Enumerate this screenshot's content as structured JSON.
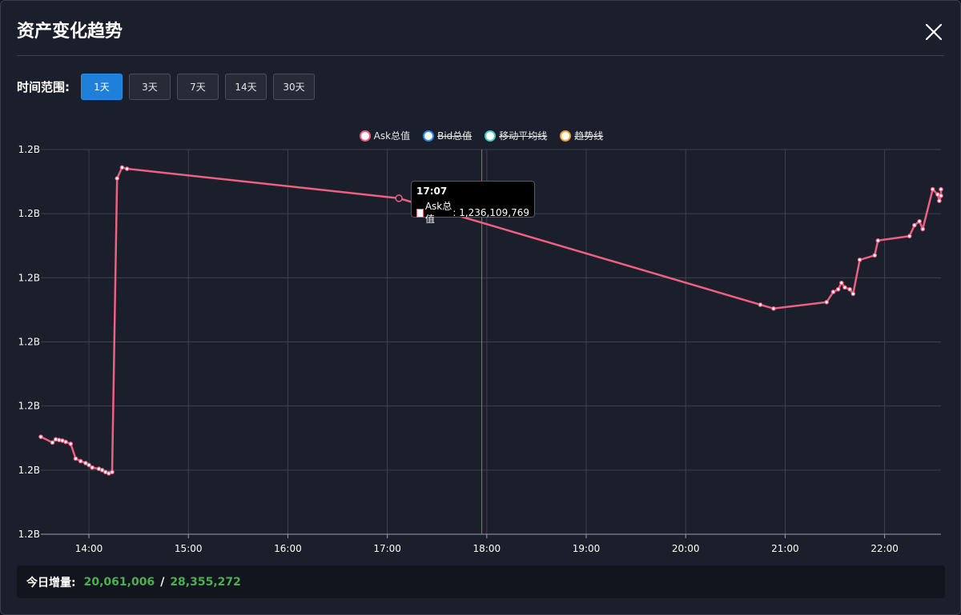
{
  "header": {
    "title": "资产变化趋势"
  },
  "range": {
    "label": "时间范围:",
    "options": [
      "1天",
      "3天",
      "7天",
      "14天",
      "30天"
    ],
    "selected": "1天"
  },
  "legend": [
    {
      "name": "Ask总值",
      "color": "#ee6080",
      "active": true
    },
    {
      "name": "Bid总值",
      "color": "#2a8ce6",
      "active": false
    },
    {
      "name": "移动平均线",
      "color": "#4ec9d0",
      "active": false
    },
    {
      "name": "趋势线",
      "color": "#f0a030",
      "active": false
    }
  ],
  "tooltip": {
    "time": "17:07",
    "series": "Ask总值",
    "value": "1,236,109,769"
  },
  "footer": {
    "label": "今日增量:",
    "value1": "20,061,006",
    "separator": "/",
    "value2": "28,355,272"
  },
  "chart_data": {
    "type": "line",
    "x_ticks": [
      "14:00",
      "15:00",
      "16:00",
      "17:00",
      "18:00",
      "19:00",
      "20:00",
      "21:00",
      "22:00"
    ],
    "y_ticks": [
      "1.2B",
      "1.2B",
      "1.2B",
      "1.2B",
      "1.2B",
      "1.2B",
      "1.2B"
    ],
    "x_domain": [
      "13:31",
      "22:34"
    ],
    "y_domain": [
      0,
      6
    ],
    "grid": true,
    "legend_position": "top-center",
    "crosshair_x": "17:57",
    "highlight_x": "17:07",
    "series": [
      {
        "name": "Ask总值",
        "color": "#ee6080",
        "points": [
          [
            "13:31",
            1.52
          ],
          [
            "13:38",
            1.43
          ],
          [
            "13:40",
            1.48
          ],
          [
            "13:42",
            1.47
          ],
          [
            "13:44",
            1.46
          ],
          [
            "13:46",
            1.44
          ],
          [
            "13:49",
            1.41
          ],
          [
            "13:52",
            1.18
          ],
          [
            "13:55",
            1.14
          ],
          [
            "13:58",
            1.11
          ],
          [
            "14:00",
            1.08
          ],
          [
            "14:02",
            1.04
          ],
          [
            "14:06",
            1.02
          ],
          [
            "14:08",
            1.0
          ],
          [
            "14:10",
            0.97
          ],
          [
            "14:12",
            0.95
          ],
          [
            "14:14",
            0.97
          ],
          [
            "14:17",
            5.55
          ],
          [
            "14:20",
            5.72
          ],
          [
            "14:23",
            5.7
          ],
          [
            "17:07",
            5.24
          ],
          [
            "20:45",
            3.58
          ],
          [
            "20:53",
            3.52
          ],
          [
            "21:25",
            3.62
          ],
          [
            "21:29",
            3.78
          ],
          [
            "21:32",
            3.82
          ],
          [
            "21:34",
            3.92
          ],
          [
            "21:36",
            3.85
          ],
          [
            "21:39",
            3.82
          ],
          [
            "21:41",
            3.75
          ],
          [
            "21:45",
            4.28
          ],
          [
            "21:54",
            4.35
          ],
          [
            "21:56",
            4.58
          ],
          [
            "22:15",
            4.65
          ],
          [
            "22:18",
            4.82
          ],
          [
            "22:21",
            4.88
          ],
          [
            "22:23",
            4.76
          ],
          [
            "22:29",
            5.38
          ],
          [
            "22:32",
            5.3
          ],
          [
            "22:33",
            5.2
          ],
          [
            "22:34",
            5.28
          ],
          [
            "22:34",
            5.38
          ]
        ]
      }
    ]
  }
}
